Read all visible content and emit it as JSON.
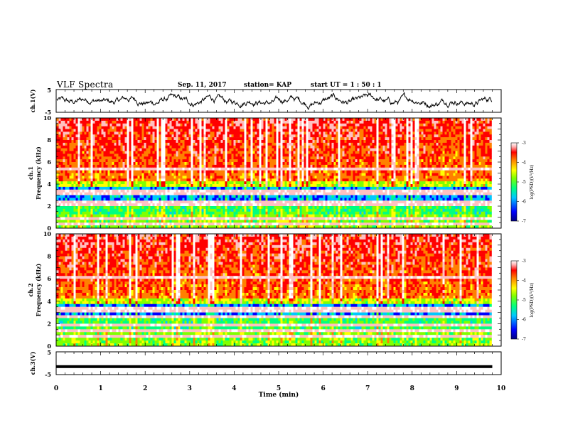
{
  "header": {
    "title": "VLF Spectra",
    "date": "Sep. 11, 2017",
    "station": "station= KAP",
    "start": "start  UT =   1 : 50 : 1"
  },
  "chart_data": [
    {
      "type": "line",
      "panel": "ch1-waveform",
      "ylabel": "ch.1(V)",
      "ylim": [
        -5,
        5
      ],
      "yticks": [
        "5",
        "-5"
      ],
      "xlim": [
        0,
        10
      ],
      "x_extent_min": [
        0,
        9.8
      ],
      "description_values": "noisy waveform oscillating roughly between -3 and 3 V"
    },
    {
      "type": "heatmap",
      "panel": "ch1-spectrogram",
      "ylabel": "ch.1\nFrequency (kHz)",
      "ylabel_top": "ch.1",
      "ylabel_bottom": "Frequency (kHz)",
      "ylim": [
        0,
        10
      ],
      "yticks": [
        "0",
        "2",
        "4",
        "6",
        "8",
        "10"
      ],
      "xlim": [
        0,
        10
      ],
      "data_extent_min": [
        0,
        9.8
      ],
      "colorbar": {
        "label": "log(PSD)(V²/Hz)",
        "range": [
          -7,
          -3
        ],
        "ticks": [
          "-3",
          "-4",
          "-5",
          "-6",
          "-7"
        ]
      },
      "bands_khz": [
        0.5,
        0.9,
        2.2,
        2.4,
        3.3,
        3.6,
        5.6
      ]
    },
    {
      "type": "heatmap",
      "panel": "ch2-spectrogram",
      "ylabel_top": "ch.2",
      "ylabel_bottom": "Frequency (kHz)",
      "ylim": [
        0,
        10
      ],
      "yticks": [
        "0",
        "2",
        "4",
        "6",
        "8",
        "10"
      ],
      "xlim": [
        0,
        10
      ],
      "data_extent_min": [
        0,
        9.8
      ],
      "colorbar": {
        "label": "log(PSD)(V²/Hz)",
        "range": [
          -7,
          -3
        ],
        "ticks": [
          "-3",
          "-4",
          "-5",
          "-6",
          "-7"
        ]
      },
      "bands_khz": [
        1.0,
        1.6,
        2.1,
        2.8,
        3.3,
        3.6,
        6.3
      ]
    },
    {
      "type": "line",
      "panel": "ch3-waveform",
      "ylabel": "ch.3(V)",
      "ylim": [
        -5,
        5
      ],
      "yticks": [
        "5",
        "-5"
      ],
      "xlim": [
        0,
        10
      ],
      "xticks": [
        "0",
        "1",
        "2",
        "3",
        "4",
        "5",
        "6",
        "7",
        "8",
        "9",
        "10"
      ],
      "xlabel": "Time (min)",
      "x_extent_min": [
        0,
        9.8
      ],
      "constant_value": -1.5
    }
  ],
  "colors": {
    "scale": [
      "#000080",
      "#0000ff",
      "#00c8ff",
      "#00ff80",
      "#80ff00",
      "#ffff00",
      "#ff8000",
      "#ff0000",
      "#ffc0c0",
      "#ffffff"
    ]
  }
}
